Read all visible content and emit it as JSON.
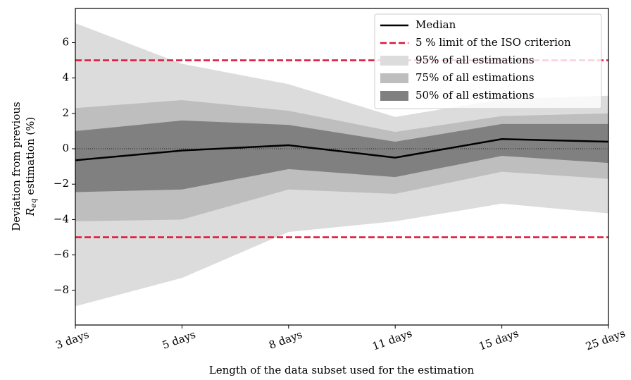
{
  "chart_data": {
    "type": "band",
    "x_label": "Length of the data subset used for the estimation",
    "y_label": {
      "line1": "Deviation from previous",
      "symbol": "R",
      "subscript": "eq",
      "rest": " estimation (%)"
    },
    "categories": [
      "3 days",
      "5 days",
      "8 days",
      "11 days",
      "15 days",
      "25 days"
    ],
    "ylim": [
      -9.96,
      7.93
    ],
    "yticks": [
      {
        "value": -8,
        "label": "−8"
      },
      {
        "value": -6,
        "label": "−6"
      },
      {
        "value": -4,
        "label": "−4"
      },
      {
        "value": -2,
        "label": "−2"
      },
      0,
      2,
      4,
      6
    ],
    "reference_y": 0,
    "series": [
      {
        "name": "Median",
        "color": "#000000",
        "values": [
          -0.65,
          -0.1,
          0.2,
          -0.5,
          0.55,
          0.4
        ]
      }
    ],
    "limit_lines": {
      "name": "5 % limit of the ISO criterion",
      "color": "#dc143c",
      "values": [
        5,
        -5
      ]
    },
    "bands": [
      {
        "name": "95% of all estimations",
        "color": "#dcdcdc",
        "upper": [
          7.1,
          4.8,
          3.65,
          1.8,
          2.8,
          3.0
        ],
        "lower": [
          -8.9,
          -7.3,
          -4.7,
          -4.1,
          -3.1,
          -3.65
        ]
      },
      {
        "name": "75% of all estimations",
        "color": "#bebebe",
        "upper": [
          2.3,
          2.75,
          2.15,
          0.95,
          1.85,
          2.0
        ],
        "lower": [
          -4.1,
          -4.0,
          -2.3,
          -2.55,
          -1.3,
          -1.7
        ]
      },
      {
        "name": "50% of all estimations",
        "color": "#808080",
        "upper": [
          1.0,
          1.6,
          1.35,
          0.4,
          1.4,
          1.4
        ],
        "lower": [
          -2.45,
          -2.3,
          -1.15,
          -1.6,
          -0.4,
          -0.8
        ]
      }
    ],
    "legend": "upper right"
  }
}
